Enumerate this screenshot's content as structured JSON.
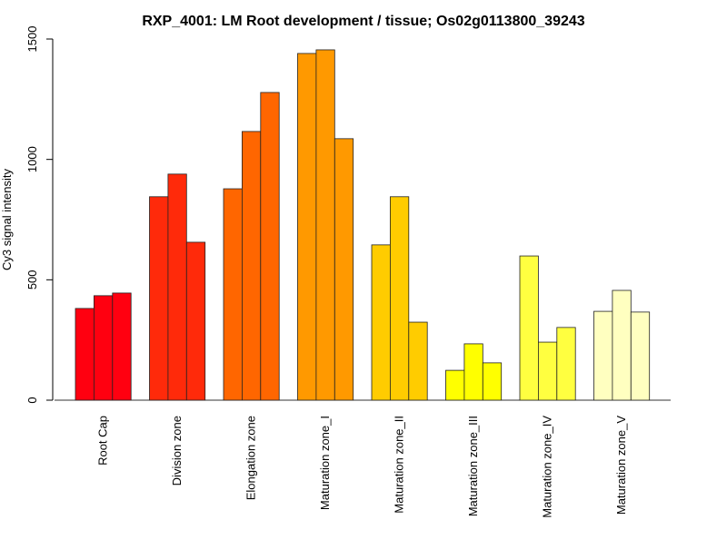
{
  "chart_data": {
    "type": "bar",
    "title": "RXP_4001: LM Root development / tissue; Os02g0113800_39243",
    "xlabel": "",
    "ylabel": "Cy3 signal intensity",
    "ylim": [
      0,
      1500
    ],
    "yticks": [
      0,
      500,
      1000,
      1500
    ],
    "grid": false,
    "categories": [
      "Root Cap",
      "Division zone",
      "Elongation zone",
      "Maturation zone_I",
      "Maturation zone_II",
      "Maturation zone_III",
      "Maturation zone_IV",
      "Maturation zone_V"
    ],
    "colors": [
      "#FF0010",
      "#FF2A0A",
      "#FF6600",
      "#FF9900",
      "#FFCC00",
      "#FFFF00",
      "#FFFF40",
      "#FFFFC0"
    ],
    "values": [
      [
        381,
        434,
        445
      ],
      [
        845,
        939,
        656
      ],
      [
        878,
        1116,
        1278
      ],
      [
        1440,
        1455,
        1086
      ],
      [
        645,
        845,
        324
      ],
      [
        124,
        234,
        155
      ],
      [
        599,
        241,
        302
      ],
      [
        369,
        456,
        366
      ]
    ]
  }
}
